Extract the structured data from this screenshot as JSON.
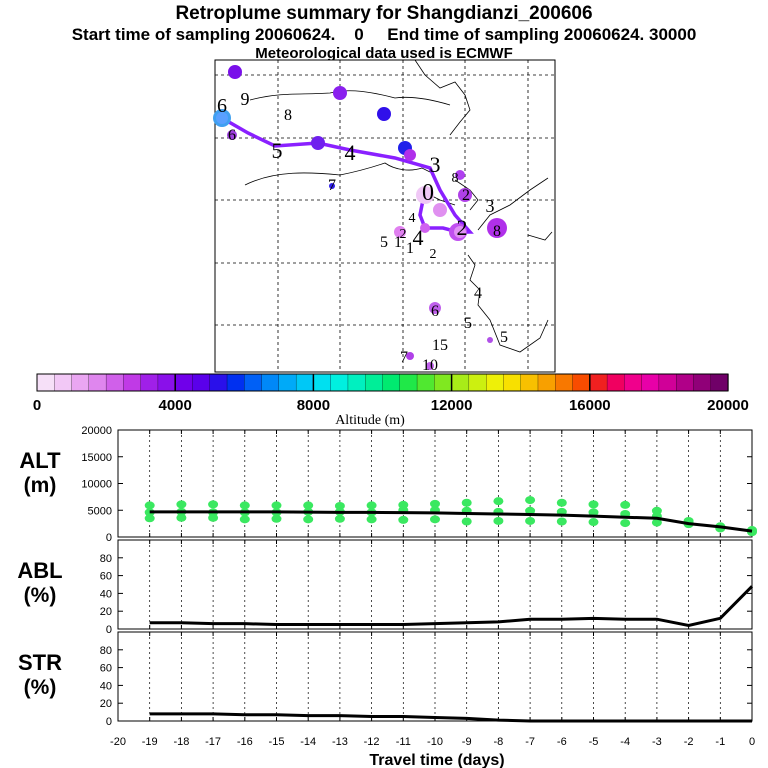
{
  "header": {
    "title": "Retroplume summary for Shangdianzi_200606",
    "sampling_line": "Start time of sampling 20060624.    0     End time of sampling 20060624. 30000",
    "met_line": "Meteorological data used is ECMWF"
  },
  "map": {
    "numbers": [
      {
        "t": "6",
        "c": "#000"
      },
      {
        "t": "9",
        "c": "#000"
      },
      {
        "t": "8",
        "c": "#000"
      },
      {
        "t": "6",
        "c": "#000"
      },
      {
        "t": "5",
        "c": "#000"
      },
      {
        "t": "4",
        "c": "#000"
      },
      {
        "t": "3",
        "c": "#000"
      },
      {
        "t": "7",
        "c": "#000"
      },
      {
        "t": "8",
        "c": "#000"
      },
      {
        "t": "0",
        "c": "#000"
      },
      {
        "t": "2",
        "c": "#000"
      },
      {
        "t": "3",
        "c": "#000"
      },
      {
        "t": "2",
        "c": "#000"
      },
      {
        "t": "5",
        "c": "#000"
      },
      {
        "t": "1",
        "c": "#000"
      },
      {
        "t": "4",
        "c": "#000"
      },
      {
        "t": "2",
        "c": "#000"
      },
      {
        "t": "4",
        "c": "#000"
      },
      {
        "t": "5",
        "c": "#000"
      },
      {
        "t": "6",
        "c": "#000"
      },
      {
        "t": "4",
        "c": "#000"
      },
      {
        "t": "5",
        "c": "#000"
      },
      {
        "t": "15",
        "c": "#000"
      },
      {
        "t": "7",
        "c": "#000"
      },
      {
        "t": "10",
        "c": "#000"
      },
      {
        "t": "8",
        "c": "#000"
      },
      {
        "t": "2",
        "c": "#000"
      },
      {
        "t": "1",
        "c": "#000"
      },
      {
        "t": "14",
        "c": "#000"
      }
    ]
  },
  "colorbar": {
    "ticks": [
      "0",
      "4000",
      "8000",
      "12000",
      "16000",
      "20000"
    ],
    "label": "Altitude (m)",
    "colors": [
      "#f6e0f8",
      "#f2c8f6",
      "#eaa6f2",
      "#df86ee",
      "#d060ea",
      "#c03ae6",
      "#a020e8",
      "#8a10ea",
      "#7000ea",
      "#5a00ea",
      "#2a10ea",
      "#0030f0",
      "#0060f6",
      "#0088f8",
      "#00aaf8",
      "#00c8f6",
      "#00e0f0",
      "#00f0e0",
      "#00f0c0",
      "#00ee98",
      "#00ea70",
      "#20e848",
      "#50e830",
      "#80e820",
      "#a8ec18",
      "#ccf010",
      "#eef008",
      "#f8e000",
      "#f8c000",
      "#f8a000",
      "#f87800",
      "#f84c00",
      "#f02020",
      "#f00060",
      "#f0008c",
      "#e800a8",
      "#d00098",
      "#b00088",
      "#900078",
      "#700068"
    ]
  },
  "chart_data": [
    {
      "type": "line",
      "panel": "ALT",
      "ylabel": "ALT\n(m)",
      "ylim": [
        0,
        20000
      ],
      "yticks": [
        "20000",
        "15000",
        "10000",
        "5000",
        "0"
      ],
      "x": [
        -19,
        -18,
        -17,
        -16,
        -15,
        -14,
        -13,
        -12,
        -11,
        -10,
        -9,
        -8,
        -7,
        -6,
        -5,
        -4,
        -3,
        -2,
        -1,
        0
      ],
      "series": [
        {
          "name": "median altitude",
          "values": [
            4700,
            4700,
            4700,
            4700,
            4700,
            4650,
            4600,
            4600,
            4550,
            4500,
            4400,
            4300,
            4200,
            4100,
            3900,
            3700,
            3500,
            2500,
            1900,
            1100
          ]
        },
        {
          "name": "cluster altitudes high",
          "values": [
            5900,
            6100,
            6100,
            5900,
            5900,
            5900,
            5800,
            5900,
            6000,
            6200,
            6400,
            6700,
            6900,
            6400,
            6100,
            6000,
            4900,
            3000,
            2000,
            1300
          ]
        },
        {
          "name": "cluster altitudes mid",
          "values": [
            4600,
            4700,
            4600,
            4600,
            4600,
            4700,
            4700,
            4600,
            5000,
            5000,
            4900,
            4700,
            4900,
            4700,
            4600,
            4300,
            3900,
            2700,
            1800,
            1100
          ]
        },
        {
          "name": "cluster altitudes low",
          "values": [
            3500,
            3600,
            3600,
            3300,
            3400,
            3300,
            3400,
            3300,
            3200,
            3300,
            2900,
            3000,
            3000,
            2900,
            2800,
            2600,
            2700,
            2400,
            1600,
            900
          ]
        }
      ]
    },
    {
      "type": "line",
      "panel": "ABL",
      "ylabel": "ABL\n(%)",
      "ylim": [
        0,
        100
      ],
      "yticks": [
        "80",
        "60",
        "40",
        "20",
        "0"
      ],
      "x": [
        -19,
        -18,
        -17,
        -16,
        -15,
        -14,
        -13,
        -12,
        -11,
        -10,
        -9,
        -8,
        -7,
        -6,
        -5,
        -4,
        -3,
        -2,
        -1,
        0
      ],
      "series": [
        {
          "name": "ABL fraction",
          "values": [
            7,
            7,
            6,
            6,
            5,
            5,
            5,
            5,
            5,
            6,
            7,
            8,
            11,
            11,
            12,
            11,
            11,
            4,
            12,
            48
          ]
        }
      ]
    },
    {
      "type": "line",
      "panel": "STR",
      "ylabel": "STR\n(%)",
      "ylim": [
        0,
        100
      ],
      "yticks": [
        "80",
        "60",
        "40",
        "20",
        "0"
      ],
      "x": [
        -19,
        -18,
        -17,
        -16,
        -15,
        -14,
        -13,
        -12,
        -11,
        -10,
        -9,
        -8,
        -7,
        -6,
        -5,
        -4,
        -3,
        -2,
        -1,
        0
      ],
      "series": [
        {
          "name": "STR fraction",
          "values": [
            8,
            8,
            8,
            7,
            7,
            6,
            6,
            5,
            5,
            4,
            3,
            1,
            0,
            0,
            0,
            0,
            0,
            0,
            0,
            0
          ]
        }
      ]
    }
  ],
  "xaxis": {
    "ticks": [
      "-20",
      "-19",
      "-18",
      "-17",
      "-16",
      "-15",
      "-14",
      "-13",
      "-12",
      "-11",
      "-10",
      "-9",
      "-8",
      "-7",
      "-6",
      "-5",
      "-4",
      "-3",
      "-2",
      "-1",
      "0"
    ],
    "label": "Travel time (days)"
  },
  "panel_labels": {
    "alt": "ALT",
    "alt_unit": "(m)",
    "abl": "ABL",
    "abl_unit": "(%)",
    "str": "STR",
    "str_unit": "(%)"
  }
}
